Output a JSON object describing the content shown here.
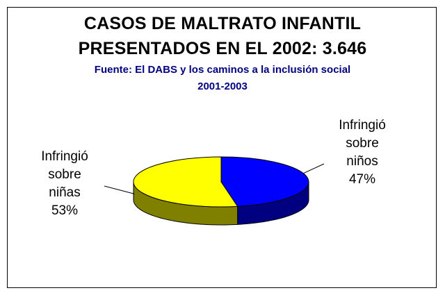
{
  "chart_data": {
    "type": "pie",
    "title_lines": [
      "CASOS DE MALTRATO INFANTIL",
      "PRESENTADOS EN EL 2002: 3.646"
    ],
    "subtitle_lines": [
      "Fuente: El DABS y los caminos a la inclusión social",
      "2001-2003"
    ],
    "three_d": true,
    "slices": [
      {
        "label_lines": [
          "Infringió",
          "sobre",
          "niños",
          "47%"
        ],
        "value": 47,
        "color": "#0000ff",
        "side_color": "#000080"
      },
      {
        "label_lines": [
          "Infringió",
          "sobre",
          "niñas",
          "53%"
        ],
        "value": 53,
        "color": "#ffff00",
        "side_color": "#808000"
      }
    ]
  }
}
